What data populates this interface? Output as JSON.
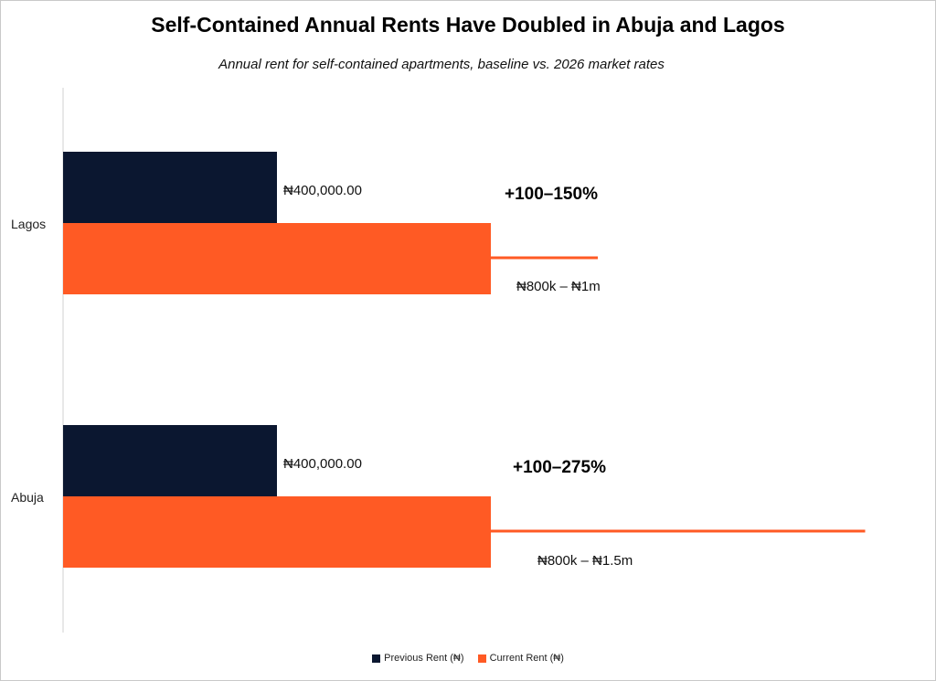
{
  "chart_data": {
    "type": "bar",
    "orientation": "horizontal",
    "title": "Self-Contained Annual Rents Have Doubled in Abuja and Lagos",
    "subtitle": "Annual rent for self-contained apartments, baseline vs. 2026 market rates",
    "categories": [
      "Lagos",
      "Abuja"
    ],
    "series": [
      {
        "name": "Previous Rent (₦)",
        "color": "#0b1730",
        "values": [
          400000,
          400000
        ],
        "labels": [
          "₦400,000.00",
          "₦400,000.00"
        ]
      },
      {
        "name": "Current Rent (₦)",
        "color": "#ff5a24",
        "values": [
          800000,
          800000
        ],
        "range_high": [
          1000000,
          1500000
        ],
        "labels": [
          "₦800k – ₦1m",
          "₦800k – ₦1.5m"
        ]
      }
    ],
    "annotations": [
      "+100–150%",
      "+100–275%"
    ],
    "xlim": [
      0,
      1600000
    ],
    "legend": "bottom"
  }
}
